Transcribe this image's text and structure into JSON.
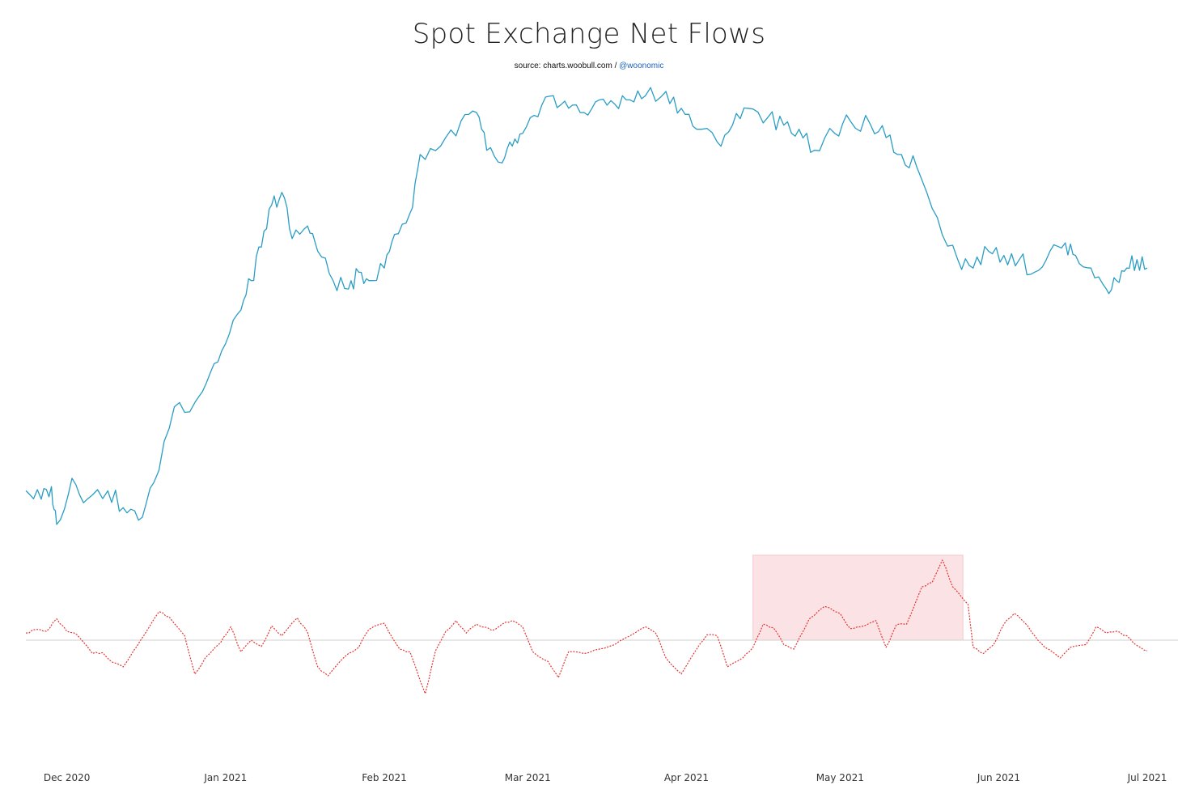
{
  "chart_data": {
    "type": "line",
    "title": "Spot Exchange Net Flows",
    "subtitle": {
      "source": "source: charts.woobull.com /",
      "handle": "@woonomic"
    },
    "x_range": [
      "2020-11-23",
      "2021-06-30"
    ],
    "x_tick_labels": [
      {
        "date": "2020-12-01",
        "label": "Dec 2020"
      },
      {
        "date": "2021-01-01",
        "label": "Jan 2021"
      },
      {
        "date": "2021-02-01",
        "label": "Feb 2021"
      },
      {
        "date": "2021-03-01",
        "label": "Mar 2021"
      },
      {
        "date": "2021-04-01",
        "label": "Apr 2021"
      },
      {
        "date": "2021-05-01",
        "label": "May 2021"
      },
      {
        "date": "2021-06-01",
        "label": "Jun 2021"
      },
      {
        "date": "2021-07-01",
        "label": "Jul 2021"
      }
    ],
    "grid": false,
    "legend": "none",
    "zero_line": true,
    "highlight_range": {
      "start": "2021-04-14",
      "end": "2021-05-25",
      "color": "#fbe3e5"
    },
    "series": [
      {
        "style": "solid",
        "color": "#2a9dc4",
        "scale": "relative",
        "points": [
          [
            "2020-11-23",
            5.0
          ],
          [
            "2020-11-26",
            3.0
          ],
          [
            "2020-11-28",
            6.0
          ],
          [
            "2020-11-29",
            -3.0
          ],
          [
            "2020-12-02",
            8.0
          ],
          [
            "2020-12-05",
            3.0
          ],
          [
            "2020-12-09",
            5.0
          ],
          [
            "2020-12-12",
            1.0
          ],
          [
            "2020-12-15",
            -2.0
          ],
          [
            "2020-12-18",
            7.0
          ],
          [
            "2020-12-22",
            25.0
          ],
          [
            "2020-12-26",
            26.0
          ],
          [
            "2020-12-29",
            33.0
          ],
          [
            "2021-01-01",
            40.0
          ],
          [
            "2021-01-04",
            48.0
          ],
          [
            "2021-01-06",
            55.0
          ],
          [
            "2021-01-08",
            63.0
          ],
          [
            "2021-01-10",
            73.0
          ],
          [
            "2021-01-12",
            76.0
          ],
          [
            "2021-01-14",
            65.0
          ],
          [
            "2021-01-17",
            68.0
          ],
          [
            "2021-01-19",
            62.0
          ],
          [
            "2021-01-22",
            55.0
          ],
          [
            "2021-01-25",
            53.0
          ],
          [
            "2021-01-27",
            57.0
          ],
          [
            "2021-01-29",
            55.0
          ],
          [
            "2021-02-01",
            58.0
          ],
          [
            "2021-02-03",
            66.0
          ],
          [
            "2021-02-06",
            71.0
          ],
          [
            "2021-02-08",
            85.0
          ],
          [
            "2021-02-12",
            87.0
          ],
          [
            "2021-02-16",
            93.0
          ],
          [
            "2021-02-19",
            95.0
          ],
          [
            "2021-02-21",
            86.0
          ],
          [
            "2021-02-24",
            83.0
          ],
          [
            "2021-02-26",
            87.0
          ],
          [
            "2021-02-28",
            90.0
          ],
          [
            "2021-03-03",
            94.0
          ],
          [
            "2021-03-06",
            99.0
          ],
          [
            "2021-03-09",
            96.0
          ],
          [
            "2021-03-12",
            95.0
          ],
          [
            "2021-03-15",
            98.0
          ],
          [
            "2021-03-18",
            97.0
          ],
          [
            "2021-03-21",
            98.0
          ],
          [
            "2021-03-24",
            99.0
          ],
          [
            "2021-03-28",
            100.0
          ],
          [
            "2021-03-31",
            96.0
          ],
          [
            "2021-04-03",
            91.0
          ],
          [
            "2021-04-07",
            88.0
          ],
          [
            "2021-04-10",
            92.0
          ],
          [
            "2021-04-13",
            96.0
          ],
          [
            "2021-04-17",
            94.0
          ],
          [
            "2021-04-20",
            92.0
          ],
          [
            "2021-04-23",
            91.0
          ],
          [
            "2021-04-26",
            86.0
          ],
          [
            "2021-04-30",
            90.0
          ],
          [
            "2021-05-03",
            93.0
          ],
          [
            "2021-05-07",
            92.0
          ],
          [
            "2021-05-10",
            89.0
          ],
          [
            "2021-05-13",
            85.0
          ],
          [
            "2021-05-16",
            82.0
          ],
          [
            "2021-05-20",
            70.0
          ],
          [
            "2021-05-24",
            60.0
          ],
          [
            "2021-05-27",
            58.0
          ],
          [
            "2021-05-30",
            62.0
          ],
          [
            "2021-06-02",
            61.0
          ],
          [
            "2021-06-05",
            60.0
          ],
          [
            "2021-06-08",
            57.0
          ],
          [
            "2021-06-11",
            62.0
          ],
          [
            "2021-06-14",
            64.0
          ],
          [
            "2021-06-16",
            61.0
          ],
          [
            "2021-06-19",
            58.0
          ],
          [
            "2021-06-22",
            53.0
          ],
          [
            "2021-06-24",
            55.0
          ],
          [
            "2021-06-26",
            58.0
          ],
          [
            "2021-06-28",
            60.0
          ],
          [
            "2021-06-30",
            58.0
          ]
        ]
      },
      {
        "style": "dotted",
        "color": "#e8322f",
        "scale": "relative",
        "points": [
          [
            "2020-11-23",
            8.0
          ],
          [
            "2020-11-25",
            12.0
          ],
          [
            "2020-11-27",
            10.0
          ],
          [
            "2020-11-29",
            24.0
          ],
          [
            "2020-12-01",
            10.0
          ],
          [
            "2020-12-03",
            6.0
          ],
          [
            "2020-12-06",
            -15.0
          ],
          [
            "2020-12-08",
            -14.0
          ],
          [
            "2020-12-10",
            -25.0
          ],
          [
            "2020-12-12",
            -30.0
          ],
          [
            "2020-12-14",
            -12.0
          ],
          [
            "2020-12-16",
            5.0
          ],
          [
            "2020-12-19",
            32.0
          ],
          [
            "2020-12-21",
            26.0
          ],
          [
            "2020-12-24",
            5.0
          ],
          [
            "2020-12-26",
            -38.0
          ],
          [
            "2020-12-28",
            -20.0
          ],
          [
            "2020-12-31",
            -3.0
          ],
          [
            "2021-01-02",
            15.0
          ],
          [
            "2021-01-04",
            -13.0
          ],
          [
            "2021-01-06",
            0.0
          ],
          [
            "2021-01-08",
            -7.0
          ],
          [
            "2021-01-10",
            16.0
          ],
          [
            "2021-01-12",
            5.0
          ],
          [
            "2021-01-15",
            25.0
          ],
          [
            "2021-01-17",
            9.0
          ],
          [
            "2021-01-19",
            -30.0
          ],
          [
            "2021-01-21",
            -40.0
          ],
          [
            "2021-01-24",
            -20.0
          ],
          [
            "2021-01-27",
            -8.0
          ],
          [
            "2021-01-29",
            12.0
          ],
          [
            "2021-02-01",
            19.0
          ],
          [
            "2021-02-04",
            -10.0
          ],
          [
            "2021-02-06",
            -13.0
          ],
          [
            "2021-02-09",
            -60.0
          ],
          [
            "2021-02-11",
            -12.0
          ],
          [
            "2021-02-13",
            10.0
          ],
          [
            "2021-02-15",
            22.0
          ],
          [
            "2021-02-17",
            8.0
          ],
          [
            "2021-02-19",
            18.0
          ],
          [
            "2021-02-22",
            11.0
          ],
          [
            "2021-02-24",
            18.0
          ],
          [
            "2021-02-26",
            22.0
          ],
          [
            "2021-02-28",
            15.0
          ],
          [
            "2021-03-02",
            -13.0
          ],
          [
            "2021-03-05",
            -24.0
          ],
          [
            "2021-03-07",
            -42.0
          ],
          [
            "2021-03-09",
            -13.0
          ],
          [
            "2021-03-12",
            -15.0
          ],
          [
            "2021-03-15",
            -10.0
          ],
          [
            "2021-03-18",
            -5.0
          ],
          [
            "2021-03-21",
            5.0
          ],
          [
            "2021-03-24",
            15.0
          ],
          [
            "2021-03-26",
            8.0
          ],
          [
            "2021-03-28",
            -20.0
          ],
          [
            "2021-03-31",
            -38.0
          ],
          [
            "2021-04-03",
            -10.0
          ],
          [
            "2021-04-05",
            6.0
          ],
          [
            "2021-04-07",
            5.0
          ],
          [
            "2021-04-09",
            -30.0
          ],
          [
            "2021-04-12",
            -20.0
          ],
          [
            "2021-04-14",
            -8.0
          ],
          [
            "2021-04-16",
            18.0
          ],
          [
            "2021-04-18",
            14.0
          ],
          [
            "2021-04-20",
            -5.0
          ],
          [
            "2021-04-22",
            -10.0
          ],
          [
            "2021-04-25",
            24.0
          ],
          [
            "2021-04-28",
            38.0
          ],
          [
            "2021-05-01",
            30.0
          ],
          [
            "2021-05-03",
            13.0
          ],
          [
            "2021-05-05",
            15.0
          ],
          [
            "2021-05-08",
            22.0
          ],
          [
            "2021-05-10",
            -8.0
          ],
          [
            "2021-05-12",
            17.0
          ],
          [
            "2021-05-14",
            18.0
          ],
          [
            "2021-05-17",
            60.0
          ],
          [
            "2021-05-19",
            65.0
          ],
          [
            "2021-05-21",
            90.0
          ],
          [
            "2021-05-23",
            60.0
          ],
          [
            "2021-05-26",
            40.0
          ],
          [
            "2021-05-27",
            -8.0
          ],
          [
            "2021-05-29",
            -15.0
          ],
          [
            "2021-05-31",
            -5.0
          ],
          [
            "2021-06-02",
            18.0
          ],
          [
            "2021-06-04",
            30.0
          ],
          [
            "2021-06-06",
            20.0
          ],
          [
            "2021-06-08",
            5.0
          ],
          [
            "2021-06-10",
            -8.0
          ],
          [
            "2021-06-13",
            -20.0
          ],
          [
            "2021-06-15",
            -8.0
          ],
          [
            "2021-06-18",
            -5.0
          ],
          [
            "2021-06-20",
            15.0
          ],
          [
            "2021-06-22",
            8.0
          ],
          [
            "2021-06-24",
            10.0
          ],
          [
            "2021-06-26",
            5.0
          ],
          [
            "2021-06-28",
            -6.0
          ],
          [
            "2021-06-30",
            -12.0
          ]
        ]
      }
    ]
  }
}
